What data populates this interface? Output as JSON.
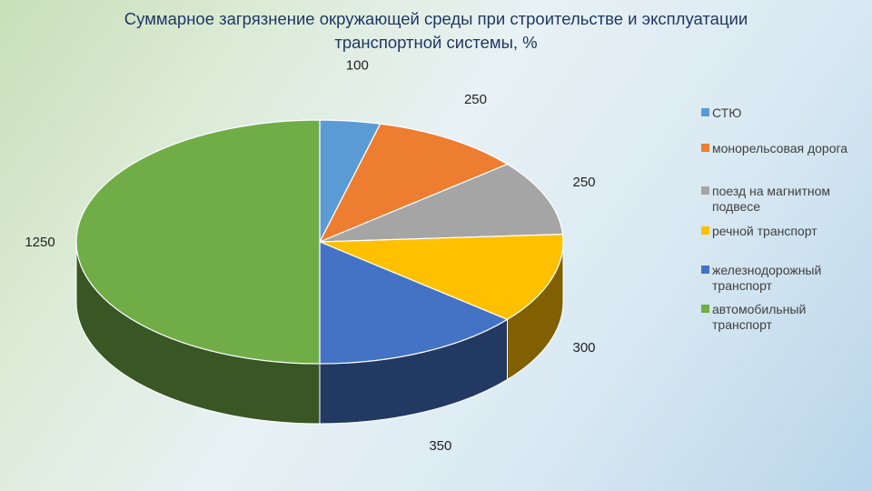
{
  "title_line1": "Суммарное загрязнение окружающей среды при строительстве и эксплуатации",
  "title_line2": "транспортной системы, %",
  "chart_data": {
    "type": "pie",
    "title": "Суммарное загрязнение окружающей среды при строительстве и эксплуатации транспортной системы, %",
    "style": "3d",
    "legend_position": "right",
    "series": [
      {
        "name": "СТЮ",
        "value": 100,
        "value_label": "100",
        "color": "#5b9bd5"
      },
      {
        "name": "монорельсовая дорога",
        "value": 250,
        "value_label": "250",
        "color": "#ed7d31"
      },
      {
        "name": "поезд на магнитном подвесе",
        "value": 250,
        "value_label": "250",
        "color": "#a5a5a5"
      },
      {
        "name": "речной транспорт",
        "value": 300,
        "value_label": "300",
        "color": "#ffc000"
      },
      {
        "name": "железнодорожный транспорт",
        "value": 350,
        "value_label": "350",
        "color": "#4472c4"
      },
      {
        "name": "автомобильный транспорт",
        "value": 1250,
        "value_label": "1250",
        "color": "#70ad47"
      }
    ]
  }
}
